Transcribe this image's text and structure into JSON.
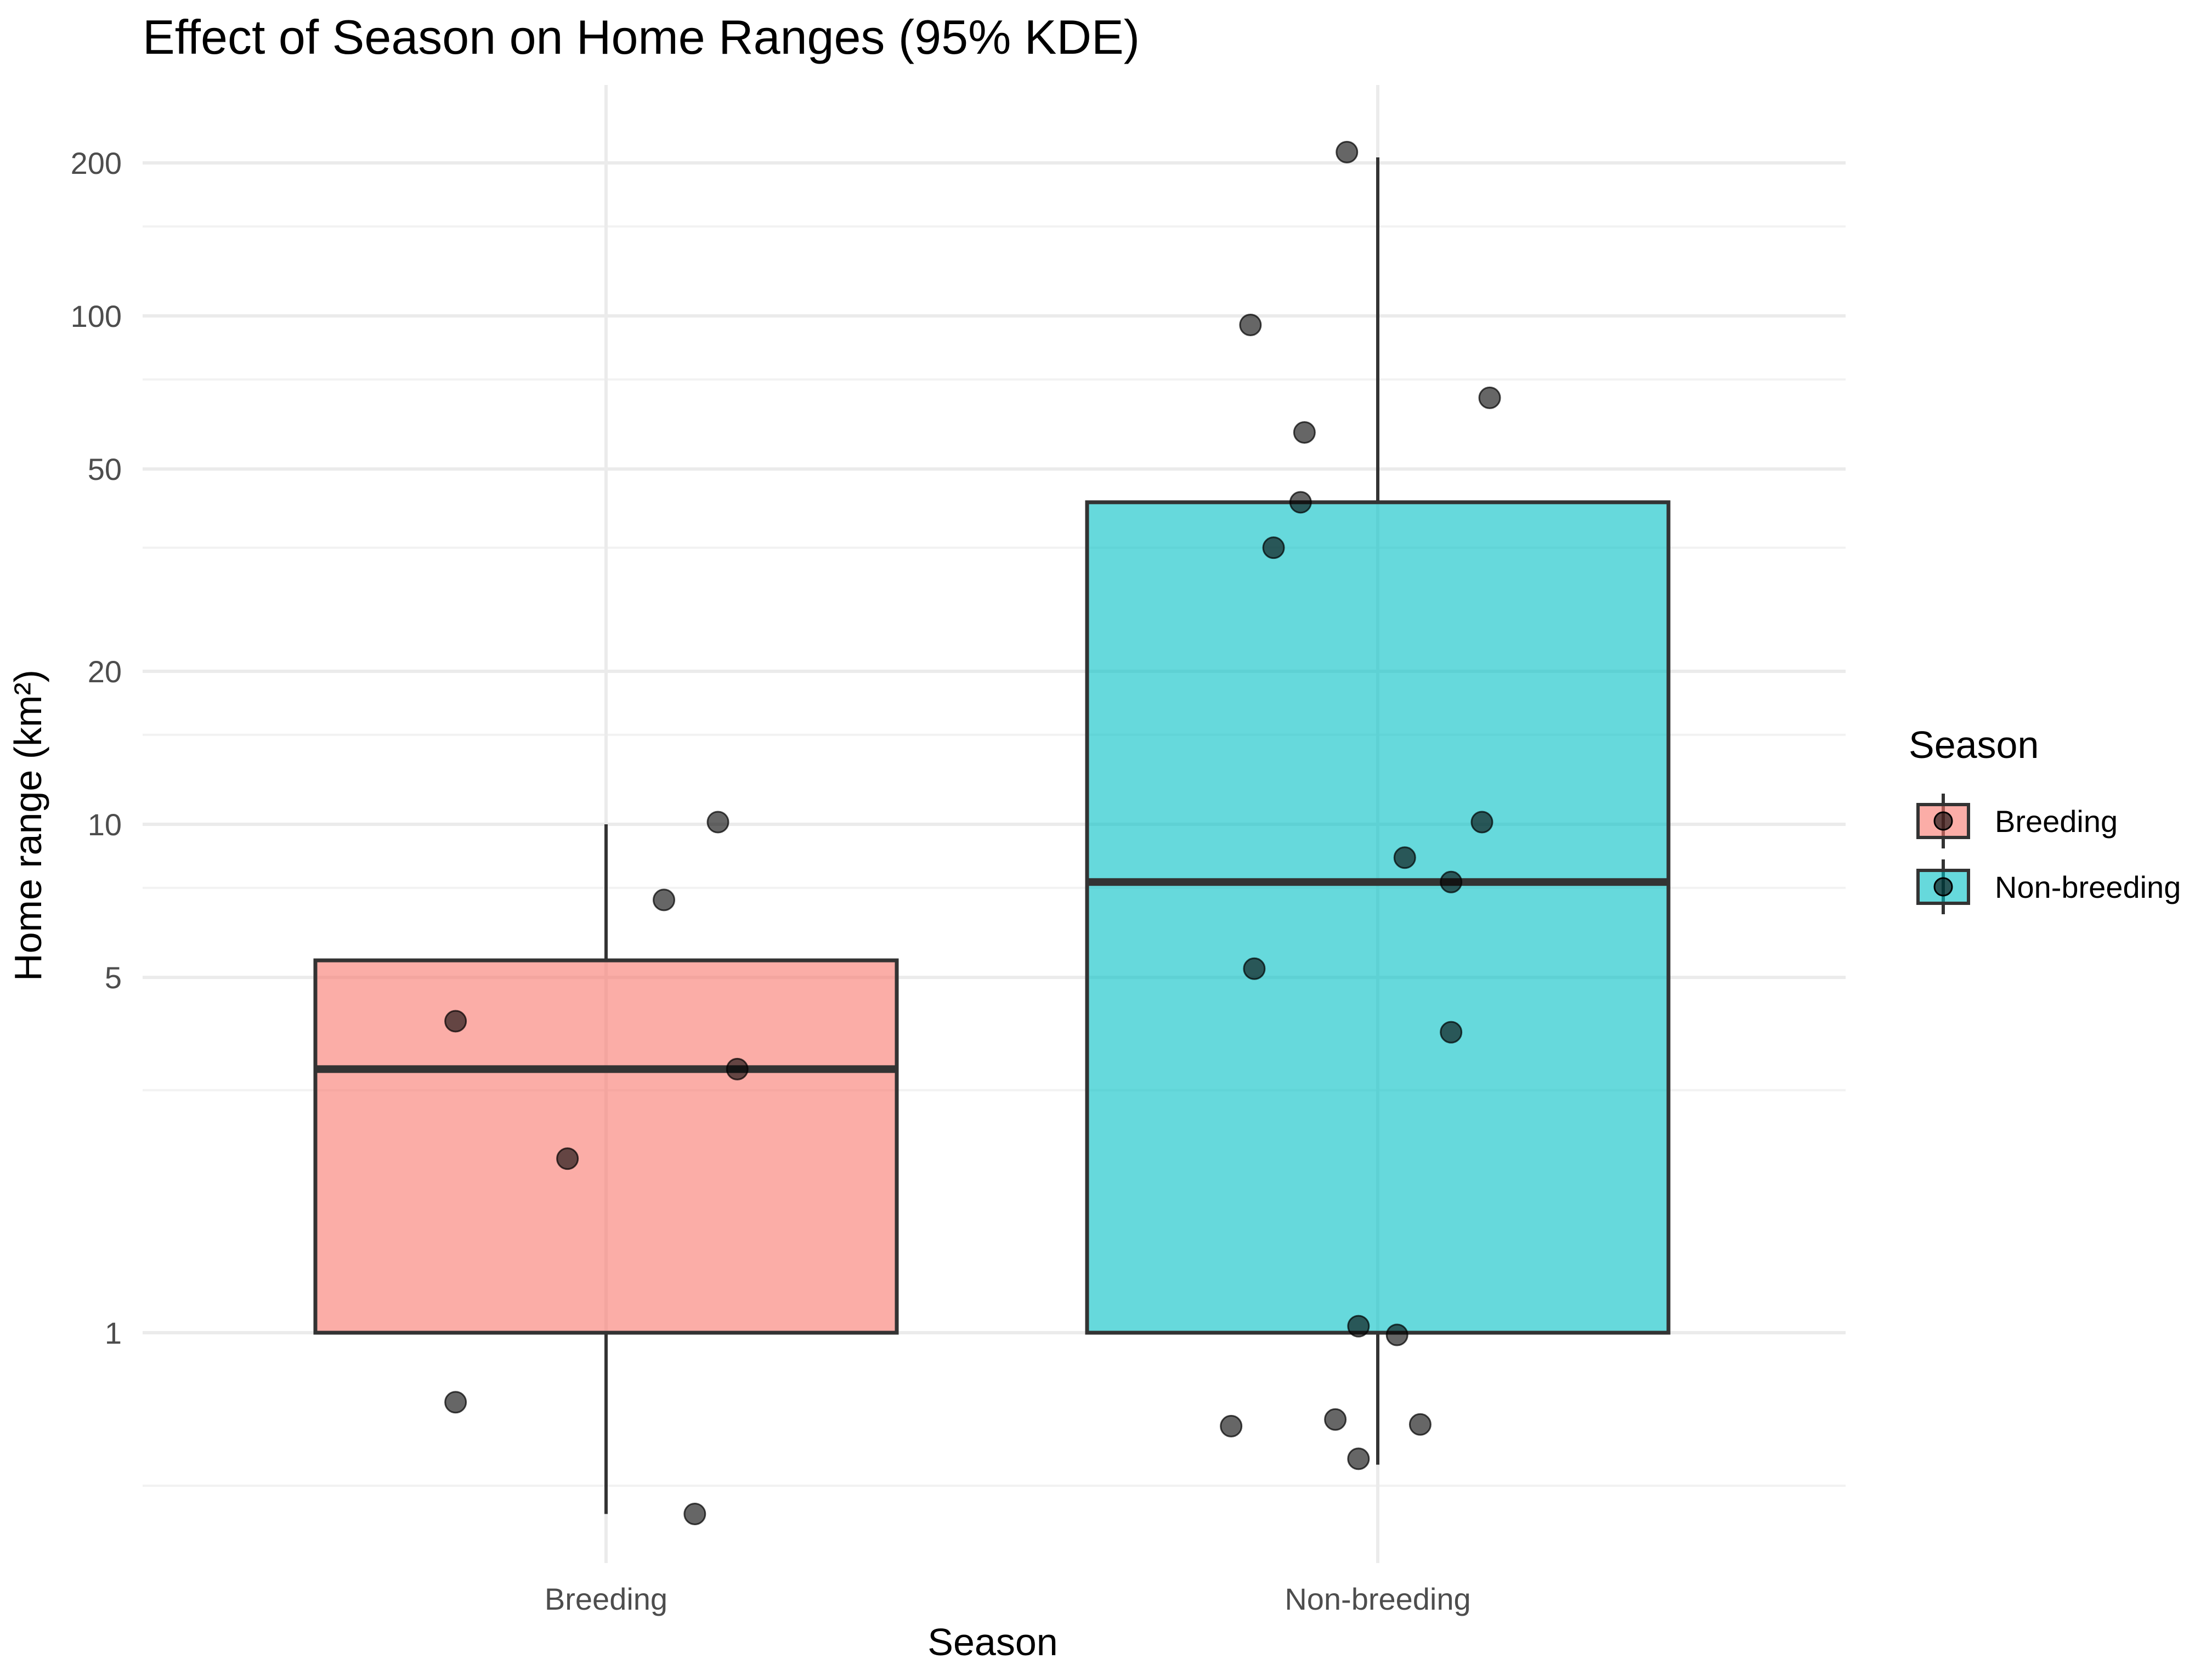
{
  "chart_data": {
    "type": "box",
    "title": "Effect of Season on Home Ranges (95% KDE)",
    "xlabel": "Season",
    "ylabel": "Home range (km²)",
    "y_scale": "log10",
    "ylim": [
      0.39,
      280
    ],
    "y_ticks": [
      1,
      5,
      10,
      20,
      50,
      100,
      200
    ],
    "y_tick_labels": [
      "1",
      "5",
      "10",
      "20",
      "50",
      "100",
      "200"
    ],
    "y_minor_ticks": [
      0.5,
      3,
      7.5,
      15,
      35,
      75,
      150
    ],
    "categories": [
      "Breeding",
      "Non-breeding"
    ],
    "grid": true,
    "legend": {
      "title": "Season",
      "position": "right",
      "entries": [
        "Breeding",
        "Non-breeding"
      ]
    },
    "series": [
      {
        "name": "Breeding",
        "color": "#F8766D",
        "box": {
          "whisker_low": 0.44,
          "q1": 1.0,
          "median": 3.3,
          "q3": 5.4,
          "whisker_high": 10.0
        },
        "points": [
          {
            "x_offset": -0.195,
            "y": 4.1
          },
          {
            "x_offset": 0.145,
            "y": 10.1
          },
          {
            "x_offset": 0.075,
            "y": 7.1
          },
          {
            "x_offset": 0.17,
            "y": 3.3
          },
          {
            "x_offset": -0.05,
            "y": 2.2
          },
          {
            "x_offset": -0.195,
            "y": 0.73
          },
          {
            "x_offset": 0.115,
            "y": 0.44
          }
        ]
      },
      {
        "name": "Non-breeding",
        "color": "#00BFC4",
        "box": {
          "whisker_low": 0.55,
          "q1": 1.0,
          "median": 7.7,
          "q3": 43,
          "whisker_high": 205
        },
        "points": [
          {
            "x_offset": -0.04,
            "y": 210
          },
          {
            "x_offset": -0.165,
            "y": 96
          },
          {
            "x_offset": 0.145,
            "y": 69
          },
          {
            "x_offset": -0.095,
            "y": 59
          },
          {
            "x_offset": -0.1,
            "y": 43
          },
          {
            "x_offset": -0.135,
            "y": 35
          },
          {
            "x_offset": 0.135,
            "y": 10.1
          },
          {
            "x_offset": 0.035,
            "y": 8.6
          },
          {
            "x_offset": 0.095,
            "y": 7.7
          },
          {
            "x_offset": -0.16,
            "y": 5.2
          },
          {
            "x_offset": 0.095,
            "y": 3.9
          },
          {
            "x_offset": -0.025,
            "y": 1.03
          },
          {
            "x_offset": 0.025,
            "y": 0.99
          },
          {
            "x_offset": -0.19,
            "y": 0.655
          },
          {
            "x_offset": -0.055,
            "y": 0.675
          },
          {
            "x_offset": 0.055,
            "y": 0.66
          },
          {
            "x_offset": -0.025,
            "y": 0.565
          }
        ]
      }
    ]
  }
}
